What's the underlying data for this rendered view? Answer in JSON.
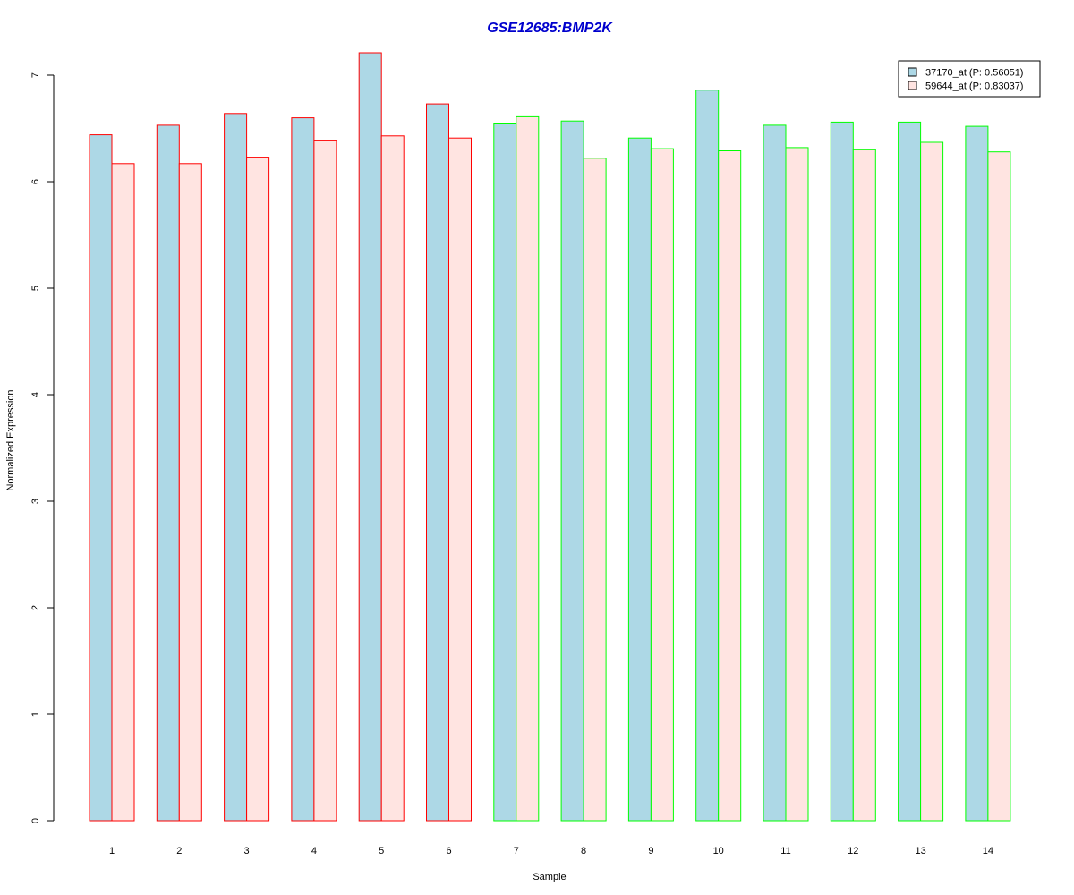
{
  "chart_data": {
    "type": "bar",
    "title": "GSE12685:BMP2K",
    "xlabel": "Sample",
    "ylabel": "Normalized Expression",
    "ylim": [
      0,
      7
    ],
    "yticks": [
      "0",
      "1",
      "2",
      "3",
      "4",
      "5",
      "6",
      "7"
    ],
    "categories": [
      "1",
      "2",
      "3",
      "4",
      "5",
      "6",
      "7",
      "8",
      "9",
      "10",
      "11",
      "12",
      "13",
      "14"
    ],
    "group_border_colors": [
      "#ff0000",
      "#ff0000",
      "#ff0000",
      "#ff0000",
      "#ff0000",
      "#ff0000",
      "#00ff00",
      "#00ff00",
      "#00ff00",
      "#00ff00",
      "#00ff00",
      "#00ff00",
      "#00ff00",
      "#00ff00"
    ],
    "series": [
      {
        "name": "37170_at (P: 0.56051)",
        "fill": "#add8e6",
        "values": [
          6.44,
          6.53,
          6.64,
          6.6,
          7.21,
          6.73,
          6.55,
          6.57,
          6.41,
          6.86,
          6.53,
          6.56,
          6.56,
          6.52
        ]
      },
      {
        "name": "59644_at (P: 0.83037)",
        "fill": "#ffe4e1",
        "values": [
          6.17,
          6.17,
          6.23,
          6.39,
          6.43,
          6.41,
          6.61,
          6.22,
          6.31,
          6.29,
          6.32,
          6.3,
          6.37,
          6.28
        ]
      }
    ],
    "legend_position": "top-right",
    "title_color": "#0000cd",
    "grid": false
  }
}
